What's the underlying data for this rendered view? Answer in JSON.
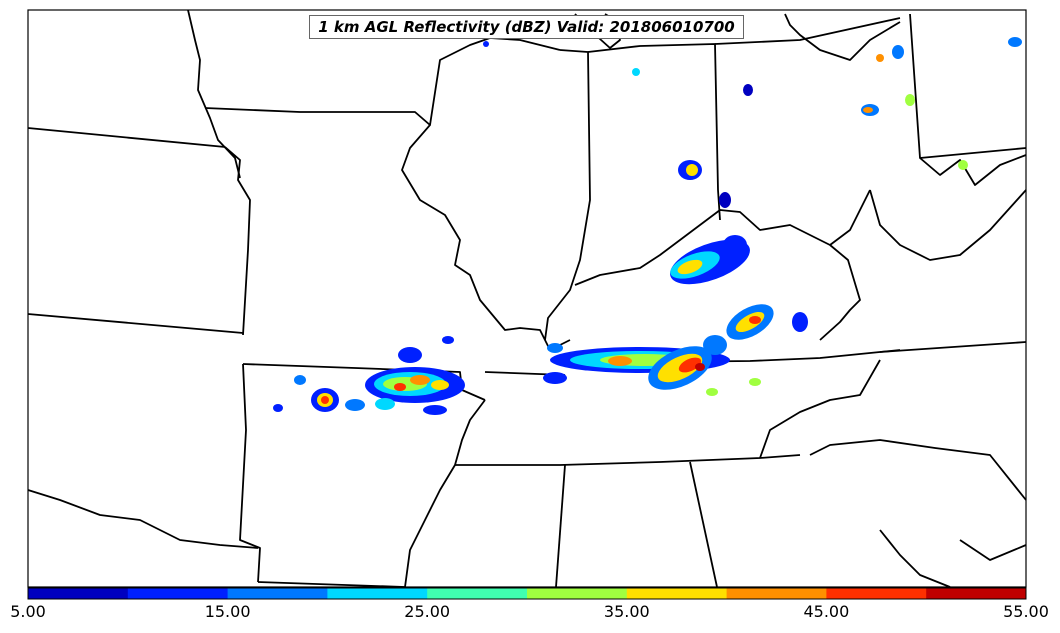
{
  "title": "1 km AGL Reflectivity (dBZ) Valid: 201806010700",
  "colorbar": {
    "ticks": [
      "5.00",
      "15.00",
      "25.00",
      "35.00",
      "45.00",
      "55.00"
    ],
    "range": [
      5,
      55
    ],
    "colors": [
      "#0000c0",
      "#0020ff",
      "#0078ff",
      "#00d8ff",
      "#40ffb0",
      "#a0ff40",
      "#ffe000",
      "#ff9000",
      "#ff3000",
      "#c00000"
    ]
  },
  "map": {
    "background": "#ffffff",
    "boundary_color": "#000000"
  }
}
